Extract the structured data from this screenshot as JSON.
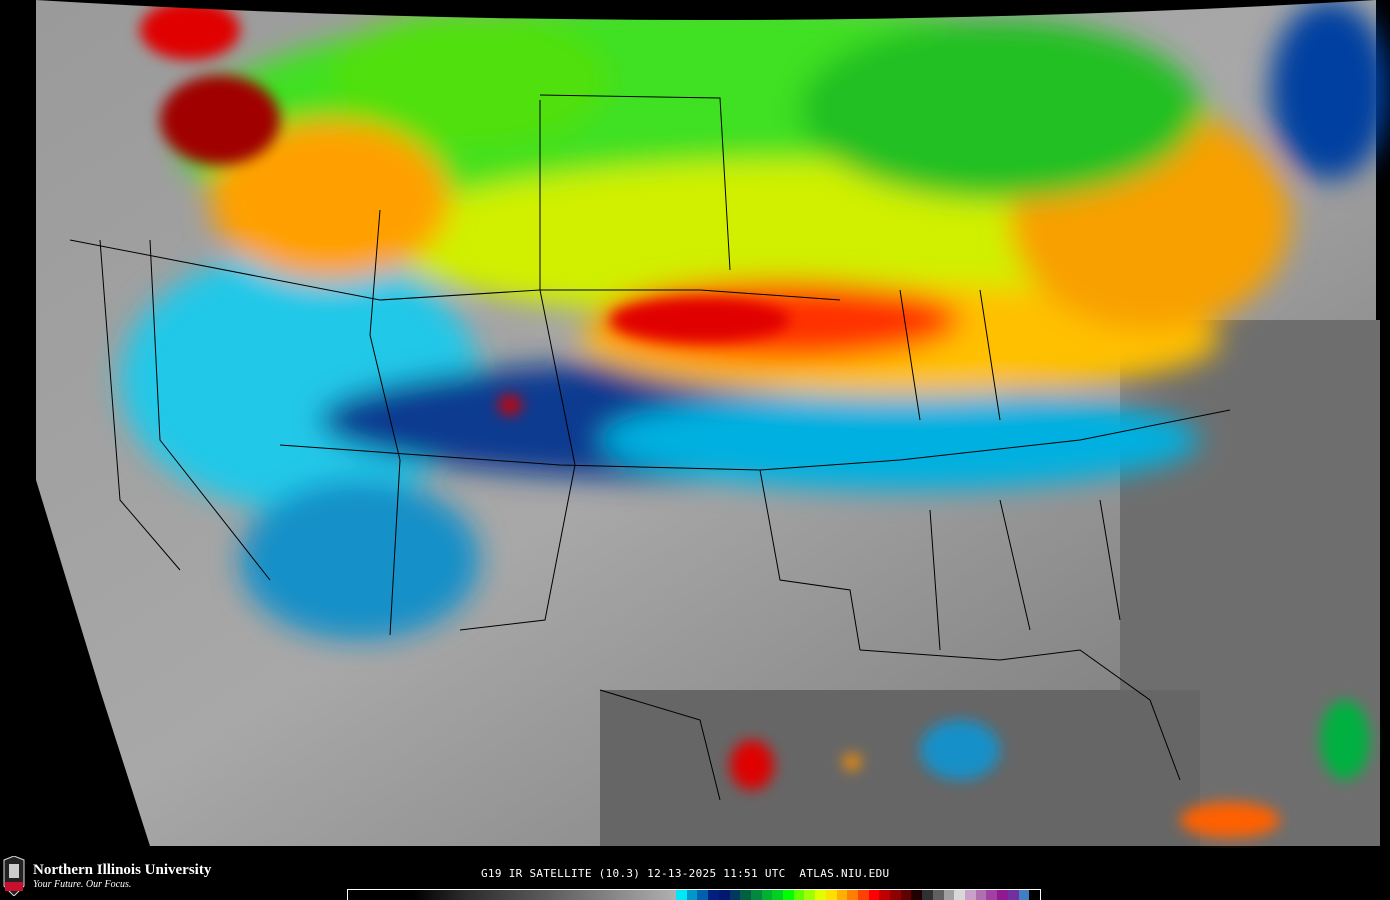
{
  "map": {
    "caption": "G19 IR SATELLITE (10.3) 12-13-2025 11:51 UTC  ATLAS.NIU.EDU"
  },
  "branding": {
    "name": "Northern Illinois University",
    "tagline": "Your Future. Our Focus.",
    "logo_text": "NIU"
  },
  "colorbar": {
    "colors": [
      "#00e8f8",
      "#0098c8",
      "#0060b0",
      "#002080",
      "#001870",
      "#003860",
      "#006040",
      "#008840",
      "#00b030",
      "#00d020",
      "#00ff00",
      "#60ff00",
      "#a0ff00",
      "#e0ff00",
      "#ffe000",
      "#ffb000",
      "#ff8000",
      "#ff4000",
      "#ff0000",
      "#c00000",
      "#900000",
      "#600000",
      "#200000",
      "#303030",
      "#606060",
      "#a0a0a0",
      "#d8d8d8",
      "#c8a0c8",
      "#b070b0",
      "#a040a0",
      "#901890",
      "#7030a0",
      "#4080c0",
      "#000000"
    ]
  }
}
